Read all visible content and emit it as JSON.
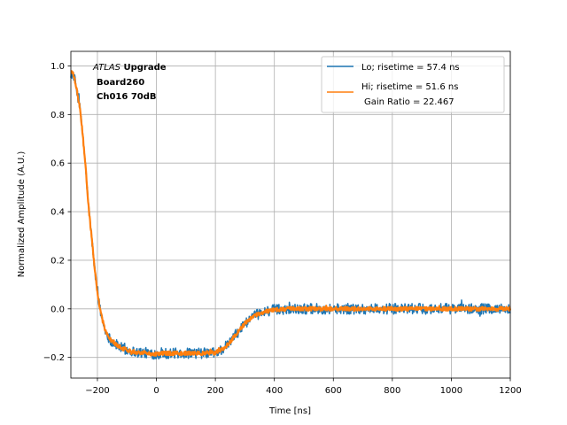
{
  "chart_data": {
    "type": "line",
    "xlabel": "Time [ns]",
    "ylabel": "Normalized Amplitude (A.U.)",
    "xlim": [
      -290,
      1200
    ],
    "ylim": [
      -0.285,
      1.06
    ],
    "xticks": [
      -200,
      0,
      200,
      400,
      600,
      800,
      1000,
      1200
    ],
    "xtick_labels": [
      "−200",
      "0",
      "200",
      "400",
      "600",
      "800",
      "1000",
      "1200"
    ],
    "yticks": [
      -0.2,
      0.0,
      0.2,
      0.4,
      0.6,
      0.8,
      1.0
    ],
    "ytick_labels": [
      "−0.2",
      "0.0",
      "0.2",
      "0.4",
      "0.6",
      "0.8",
      "1.0"
    ],
    "grid": true,
    "legend_position": "top-right",
    "annotation": {
      "line1_italic": "ATLAS",
      "line1_bold": " Upgrade",
      "line2": "Board260",
      "line3": "Ch016 70dB"
    },
    "series": [
      {
        "name": "Lo; risetime = 57.4 ns",
        "color": "#1f77b4",
        "noise": 0.022,
        "x": [
          -290,
          -280,
          -270,
          -260,
          -250,
          -240,
          -230,
          -220,
          -210,
          -200,
          -190,
          -180,
          -170,
          -160,
          -150,
          -140,
          -120,
          -100,
          -80,
          -60,
          -40,
          -20,
          0,
          20,
          50,
          100,
          150,
          200,
          220,
          240,
          260,
          280,
          300,
          320,
          340,
          360,
          380,
          400,
          450,
          500,
          600,
          700,
          800,
          900,
          1000,
          1100,
          1200
        ],
        "y": [
          0.97,
          0.96,
          0.9,
          0.83,
          0.72,
          0.58,
          0.42,
          0.3,
          0.17,
          0.07,
          -0.01,
          -0.06,
          -0.1,
          -0.12,
          -0.135,
          -0.145,
          -0.16,
          -0.17,
          -0.175,
          -0.18,
          -0.18,
          -0.185,
          -0.185,
          -0.183,
          -0.183,
          -0.183,
          -0.183,
          -0.18,
          -0.17,
          -0.15,
          -0.12,
          -0.09,
          -0.06,
          -0.04,
          -0.025,
          -0.015,
          -0.008,
          -0.003,
          0.0,
          0.0,
          0.0,
          0.0,
          0.0,
          0.0,
          0.0,
          0.0,
          0.0
        ]
      },
      {
        "name": "Hi; risetime = 51.6 ns",
        "name_line2": "Gain Ratio = 22.467",
        "color": "#ff7f0e",
        "noise": 0.008,
        "x": [
          -290,
          -280,
          -270,
          -260,
          -250,
          -240,
          -230,
          -220,
          -210,
          -200,
          -190,
          -180,
          -170,
          -160,
          -150,
          -140,
          -120,
          -100,
          -80,
          -60,
          -40,
          -20,
          0,
          20,
          50,
          100,
          150,
          200,
          220,
          240,
          260,
          280,
          300,
          320,
          340,
          360,
          380,
          400,
          450,
          500,
          600,
          700,
          800,
          900,
          1000,
          1100,
          1200
        ],
        "y": [
          0.98,
          0.96,
          0.9,
          0.83,
          0.72,
          0.58,
          0.42,
          0.3,
          0.17,
          0.07,
          -0.01,
          -0.06,
          -0.1,
          -0.12,
          -0.135,
          -0.145,
          -0.16,
          -0.17,
          -0.175,
          -0.18,
          -0.18,
          -0.185,
          -0.185,
          -0.183,
          -0.183,
          -0.183,
          -0.183,
          -0.18,
          -0.17,
          -0.15,
          -0.12,
          -0.09,
          -0.06,
          -0.04,
          -0.025,
          -0.015,
          -0.008,
          -0.003,
          0.0,
          0.0,
          0.0,
          0.0,
          0.0,
          0.0,
          0.0,
          0.0,
          0.0
        ]
      }
    ]
  }
}
